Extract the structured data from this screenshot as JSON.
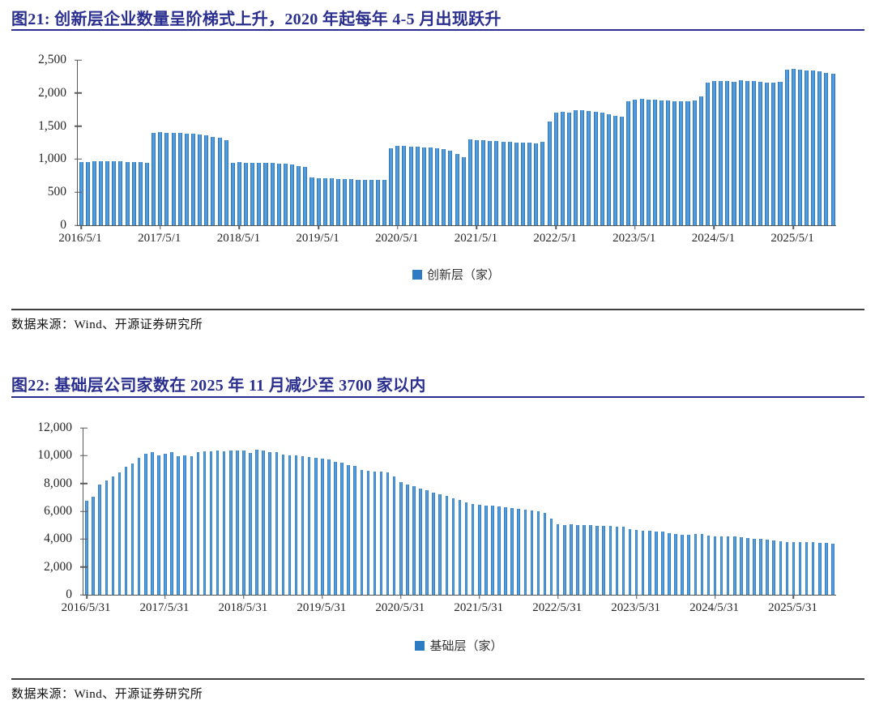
{
  "page": {
    "background": "#ffffff",
    "text_color": "#1a1a1a",
    "axis_color": "#595959"
  },
  "chart_data": [
    {
      "type": "bar",
      "figure_label": "图21",
      "title": "图21:  创新层企业数量呈阶梯式上升，2020 年起每年 4-5 月出现跃升",
      "title_color": "#2A2F8F",
      "legend": "创新层（家）",
      "legend_position": "bottom",
      "legend_color": "#2C7BC3",
      "source": "数据来源：Wind、开源证券研究所",
      "grid": false,
      "ylim": [
        0,
        2500
      ],
      "ytick_values": [
        0,
        500,
        1000,
        1500,
        2000,
        2500
      ],
      "ytick_labels": [
        "0",
        "500",
        "1,000",
        "1,500",
        "2,000",
        "2,500"
      ],
      "x_tick_indices": [
        0,
        12,
        24,
        36,
        48,
        60,
        72,
        84,
        96,
        108
      ],
      "x_tick_labels": [
        "2016/5/1",
        "2017/5/1",
        "2018/5/1",
        "2019/5/1",
        "2020/5/1",
        "2021/5/1",
        "2022/5/1",
        "2023/5/1",
        "2024/5/1",
        "2025/5/1"
      ],
      "bar_edge_color": "#1E6AB0",
      "bar_mid_color": "#559CDB",
      "values": [
        955,
        962,
        963,
        964,
        965,
        964,
        963,
        962,
        960,
        952,
        948,
        1398,
        1406,
        1403,
        1399,
        1394,
        1388,
        1381,
        1373,
        1363,
        1342,
        1318,
        1285,
        948,
        950,
        947,
        945,
        943,
        941,
        938,
        934,
        928,
        916,
        898,
        878,
        722,
        716,
        712,
        708,
        704,
        700,
        696,
        692,
        688,
        685,
        683,
        681,
        1162,
        1200,
        1197,
        1192,
        1186,
        1179,
        1171,
        1160,
        1148,
        1125,
        1078,
        1032,
        1298,
        1291,
        1284,
        1277,
        1271,
        1266,
        1260,
        1256,
        1251,
        1246,
        1243,
        1261,
        1563,
        1698,
        1712,
        1706,
        1736,
        1744,
        1729,
        1717,
        1701,
        1679,
        1659,
        1647,
        1878,
        1905,
        1911,
        1903,
        1898,
        1892,
        1887,
        1881,
        1877,
        1874,
        1893,
        1951,
        2152,
        2181,
        2186,
        2181,
        2175,
        2192,
        2183,
        2177,
        2171,
        2161,
        2156,
        2166,
        2352,
        2360,
        2350,
        2341,
        2336,
        2331,
        2302,
        2286
      ]
    },
    {
      "type": "bar",
      "figure_label": "图22",
      "title": "图22:  基础层公司家数在 2025 年 11 月减少至 3700 家以内",
      "title_color": "#2A2F8F",
      "legend": "基础层（家）",
      "legend_position": "bottom",
      "legend_color": "#2C7BC3",
      "source": "数据来源：Wind、开源证券研究所",
      "grid": false,
      "ylim": [
        0,
        12000
      ],
      "ytick_values": [
        0,
        2000,
        4000,
        6000,
        8000,
        10000,
        12000
      ],
      "ytick_labels": [
        "0",
        "2,000",
        "4,000",
        "6,000",
        "8,000",
        "10,000",
        "12,000"
      ],
      "x_tick_indices": [
        0,
        12,
        24,
        36,
        48,
        60,
        72,
        84,
        96,
        108
      ],
      "x_tick_labels": [
        "2016/5/31",
        "2017/5/31",
        "2018/5/31",
        "2019/5/31",
        "2020/5/31",
        "2021/5/31",
        "2022/5/31",
        "2023/5/31",
        "2024/5/31",
        "2025/5/31"
      ],
      "bar_edge_color": "#1E6AB0",
      "bar_mid_color": "#559CDB",
      "values": [
        6760,
        7060,
        7920,
        8220,
        8500,
        8810,
        9200,
        9450,
        9850,
        10140,
        10250,
        10020,
        10110,
        10260,
        9960,
        10010,
        9960,
        10260,
        10300,
        10320,
        10350,
        10310,
        10350,
        10360,
        10350,
        10210,
        10430,
        10360,
        10260,
        10250,
        10060,
        10040,
        10010,
        9980,
        9930,
        9830,
        9760,
        9700,
        9560,
        9500,
        9310,
        9260,
        8960,
        8900,
        8870,
        8840,
        8800,
        8500,
        8100,
        7950,
        7800,
        7650,
        7500,
        7350,
        7230,
        7100,
        6950,
        6800,
        6650,
        6550,
        6470,
        6430,
        6390,
        6350,
        6300,
        6260,
        6200,
        6130,
        6050,
        5980,
        5900,
        5480,
        5050,
        5030,
        5060,
        5030,
        5000,
        4990,
        4970,
        4950,
        4930,
        4910,
        4890,
        4700,
        4650,
        4620,
        4600,
        4570,
        4520,
        4450,
        4380,
        4330,
        4310,
        4350,
        4390,
        4250,
        4200,
        4210,
        4220,
        4200,
        4150,
        4080,
        4040,
        4000,
        3950,
        3900,
        3870,
        3790,
        3780,
        3800,
        3780,
        3760,
        3740,
        3720,
        3690
      ]
    }
  ]
}
